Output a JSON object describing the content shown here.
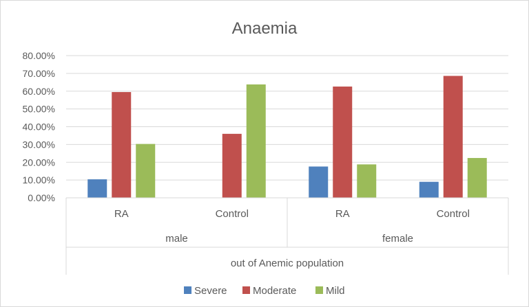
{
  "chart_data": {
    "type": "bar",
    "title": "Anaemia",
    "categories": [
      {
        "label": "RA",
        "group": "male"
      },
      {
        "label": "Control",
        "group": "male"
      },
      {
        "label": "RA",
        "group": "female"
      },
      {
        "label": "Control",
        "group": "female"
      }
    ],
    "groups": [
      "male",
      "female"
    ],
    "super_group": "out of Anemic population",
    "series": [
      {
        "name": "Severe",
        "color": "#4f81bd",
        "values": [
          10.4,
          0,
          17.6,
          9.0
        ]
      },
      {
        "name": "Moderate",
        "color": "#c0504d",
        "values": [
          59.5,
          36.0,
          62.6,
          68.6
        ]
      },
      {
        "name": "Mild",
        "color": "#9bbb59",
        "values": [
          30.3,
          63.8,
          18.8,
          22.4
        ]
      }
    ],
    "y_ticks": [
      "0.00%",
      "10.00%",
      "20.00%",
      "30.00%",
      "40.00%",
      "50.00%",
      "60.00%",
      "70.00%",
      "80.00%"
    ],
    "ylim": [
      0,
      80
    ],
    "grid": true,
    "legend_position": "bottom"
  }
}
